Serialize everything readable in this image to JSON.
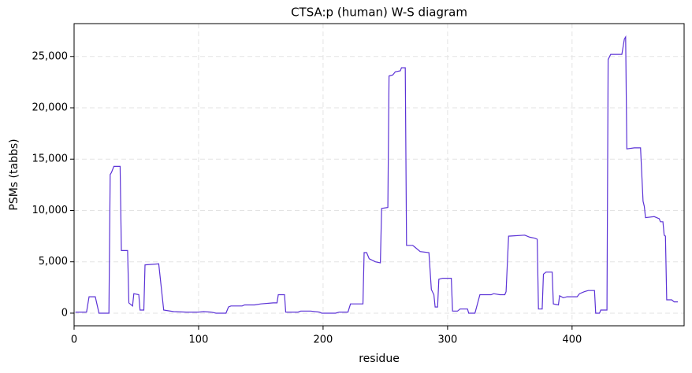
{
  "chart_data": {
    "type": "line",
    "title": "CTSA:p (human) W-S diagram",
    "x_label": "residue",
    "y_label": "PSMs (tabbs)",
    "grid": true,
    "xlim": [
      0,
      490
    ],
    "ylim": [
      -1230,
      28200
    ],
    "xticks": [
      0,
      100,
      200,
      300,
      400
    ],
    "yticks": [
      0,
      {
        "value": 5000,
        "label": "5,000"
      },
      {
        "value": 10000,
        "label": "10,000"
      },
      {
        "value": 15000,
        "label": "15,000"
      },
      {
        "value": 20000,
        "label": "20,000"
      },
      {
        "value": 25000,
        "label": "25,000"
      }
    ],
    "x": [
      1,
      10,
      12,
      17,
      20,
      28,
      29,
      30,
      32,
      37,
      38,
      43,
      44,
      47,
      48,
      52,
      53,
      56,
      57,
      68,
      72,
      80,
      90,
      100,
      104,
      110,
      114,
      122,
      124,
      126,
      135,
      137,
      145,
      150,
      160,
      163,
      164,
      169,
      170,
      180,
      182,
      190,
      197,
      199,
      210,
      213,
      220,
      222,
      232,
      233,
      235,
      237,
      242,
      246,
      247,
      252,
      253,
      256,
      258,
      262,
      263,
      266,
      267,
      272,
      274,
      278,
      285,
      287,
      289,
      290,
      292,
      293,
      296,
      303,
      304,
      308,
      310,
      316,
      317,
      322,
      326,
      335,
      337,
      342,
      346,
      347,
      349,
      362,
      366,
      370,
      372,
      373,
      376,
      377,
      379,
      384,
      385,
      389,
      390,
      393,
      396,
      404,
      406,
      410,
      413,
      418,
      419,
      422,
      423,
      428,
      429,
      431,
      440,
      442,
      443,
      444,
      450,
      455,
      457,
      458,
      459,
      466,
      470,
      471,
      473,
      474,
      475,
      476,
      480,
      482,
      485
    ],
    "series": [
      {
        "name": "PSMs",
        "color": "#5b32d6",
        "values": [
          100,
          100,
          1600,
          1600,
          0,
          0,
          13500,
          13700,
          14300,
          14300,
          6100,
          6100,
          1000,
          700,
          1900,
          1800,
          300,
          300,
          4700,
          4800,
          300,
          150,
          100,
          100,
          150,
          100,
          0,
          0,
          600,
          700,
          700,
          800,
          800,
          900,
          1000,
          1000,
          1800,
          1800,
          100,
          100,
          200,
          200,
          100,
          0,
          0,
          100,
          100,
          900,
          900,
          5900,
          5900,
          5300,
          5000,
          4900,
          10200,
          10300,
          23100,
          23200,
          23500,
          23600,
          23900,
          23900,
          6600,
          6600,
          6400,
          6000,
          5900,
          2300,
          1800,
          600,
          600,
          3300,
          3400,
          3400,
          200,
          200,
          400,
          400,
          0,
          0,
          1800,
          1800,
          1900,
          1800,
          1800,
          2100,
          7500,
          7600,
          7400,
          7300,
          7200,
          400,
          400,
          3800,
          4000,
          4000,
          900,
          800,
          1700,
          1500,
          1600,
          1600,
          1900,
          2100,
          2200,
          2200,
          0,
          0,
          300,
          300,
          24700,
          25200,
          25200,
          26700,
          26900,
          16000,
          16100,
          16100,
          10900,
          10400,
          9300,
          9400,
          9200,
          8900,
          8900,
          7600,
          7500,
          1300,
          1300,
          1100,
          1100
        ]
      }
    ]
  }
}
